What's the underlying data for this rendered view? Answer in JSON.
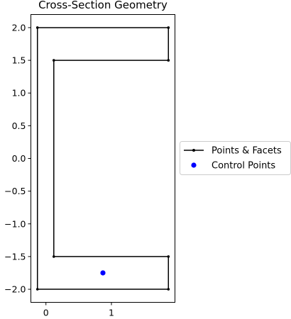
{
  "chart_data": {
    "type": "line",
    "title": "Cross-Section Geometry",
    "xlabel": "",
    "ylabel": "",
    "xlim": [
      -0.23,
      1.97
    ],
    "ylim": [
      -2.2,
      2.2
    ],
    "x_ticks": [
      0,
      1
    ],
    "x_tick_labels": [
      "0",
      "1"
    ],
    "y_ticks": [
      2.0,
      1.5,
      1.0,
      0.5,
      0.0,
      -0.5,
      -1.0,
      -1.5,
      -2.0
    ],
    "y_tick_labels": [
      "2.0",
      "1.5",
      "1.0",
      "0.5",
      "0.0",
      "−0.5",
      "−1.0",
      "−1.5",
      "−2.0"
    ],
    "grid": false,
    "legend_position": "outside-right",
    "series": [
      {
        "name": "Points & Facets",
        "color": "#000000",
        "marker": "point",
        "points": [
          [
            -0.13,
            -2.0
          ],
          [
            1.87,
            -2.0
          ],
          [
            1.87,
            -1.5
          ],
          [
            0.12,
            -1.5
          ],
          [
            0.12,
            1.5
          ],
          [
            1.87,
            1.5
          ],
          [
            1.87,
            2.0
          ],
          [
            -0.13,
            2.0
          ],
          [
            -0.13,
            -2.0
          ]
        ]
      },
      {
        "name": "Control Points",
        "color": "#0000ff",
        "marker": "circle",
        "points": [
          [
            0.87,
            -1.75
          ]
        ]
      }
    ]
  }
}
